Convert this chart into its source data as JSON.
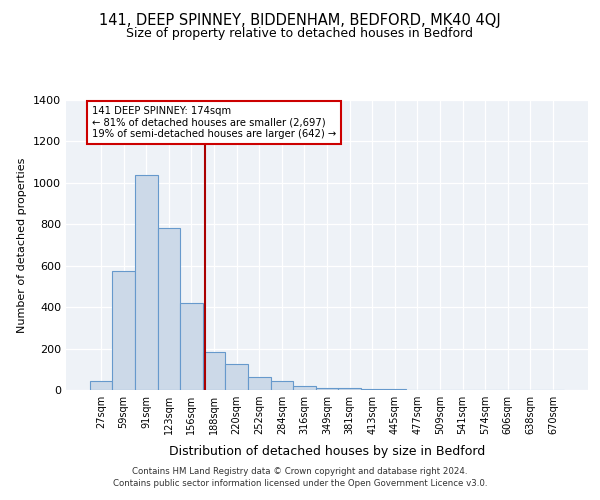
{
  "title": "141, DEEP SPINNEY, BIDDENHAM, BEDFORD, MK40 4QJ",
  "subtitle": "Size of property relative to detached houses in Bedford",
  "xlabel": "Distribution of detached houses by size in Bedford",
  "ylabel": "Number of detached properties",
  "categories": [
    "27sqm",
    "59sqm",
    "91sqm",
    "123sqm",
    "156sqm",
    "188sqm",
    "220sqm",
    "252sqm",
    "284sqm",
    "316sqm",
    "349sqm",
    "381sqm",
    "413sqm",
    "445sqm",
    "477sqm",
    "509sqm",
    "541sqm",
    "574sqm",
    "606sqm",
    "638sqm",
    "670sqm"
  ],
  "values": [
    45,
    575,
    1040,
    780,
    420,
    185,
    125,
    62,
    42,
    18,
    12,
    8,
    5,
    3,
    1,
    0,
    0,
    0,
    0,
    0,
    0
  ],
  "bar_color": "#ccd9e8",
  "bar_edge_color": "#6699cc",
  "vline_x_index": 4.62,
  "vline_color": "#aa0000",
  "annotation_text_line1": "141 DEEP SPINNEY: 174sqm",
  "annotation_text_line2": "← 81% of detached houses are smaller (2,697)",
  "annotation_text_line3": "19% of semi-detached houses are larger (642) →",
  "footnote1": "Contains HM Land Registry data © Crown copyright and database right 2024.",
  "footnote2": "Contains public sector information licensed under the Open Government Licence v3.0.",
  "ylim": [
    0,
    1400
  ],
  "background_color": "#eef2f7"
}
